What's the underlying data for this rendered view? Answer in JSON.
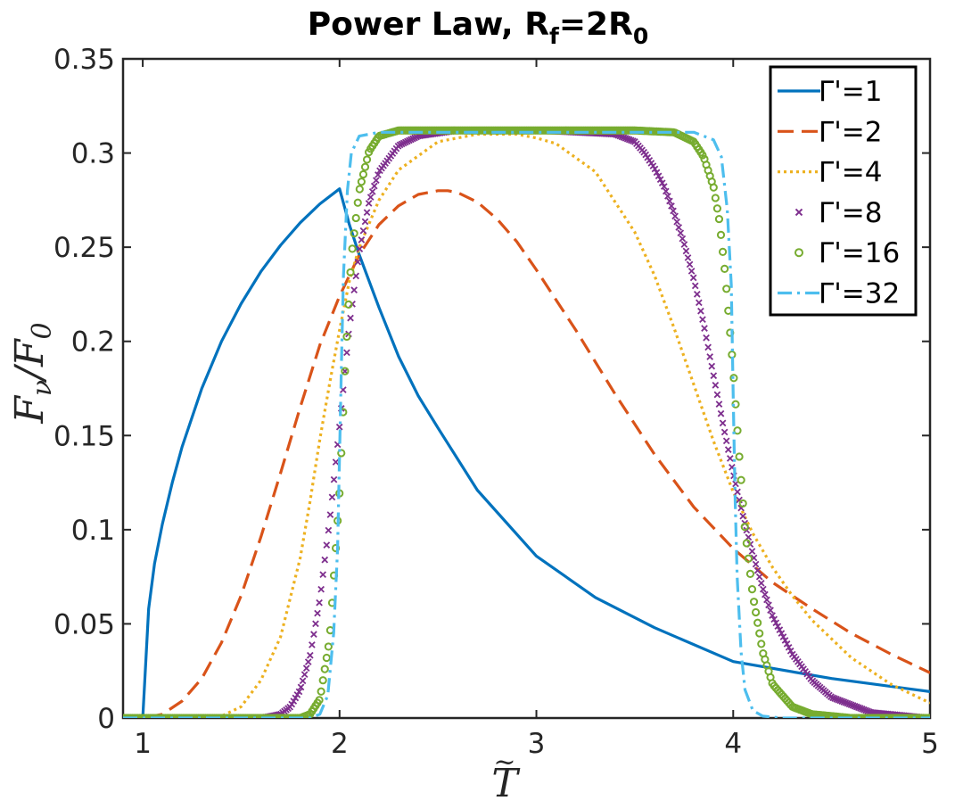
{
  "chart_data": {
    "type": "line",
    "title": "Power Law, R",
    "title_sub1": "f",
    "title_mid": "=2R",
    "title_sub2": "0",
    "xlabel": "T",
    "xlabel_accent": "~",
    "ylabel_main": "F",
    "ylabel_sub1": "ν",
    "ylabel_slash": "/F",
    "ylabel_sub2": "0",
    "xlim": [
      0.9,
      5
    ],
    "ylim": [
      0,
      0.35
    ],
    "x_ticks": [
      1,
      2,
      3,
      4,
      5
    ],
    "x_tick_labels": [
      "1",
      "2",
      "3",
      "4",
      "5"
    ],
    "y_ticks": [
      0,
      0.05,
      0.1,
      0.15,
      0.2,
      0.25,
      0.3,
      0.35
    ],
    "y_tick_labels": [
      "0",
      "0.05",
      "0.1",
      "0.15",
      "0.2",
      "0.25",
      "0.3",
      "0.35"
    ],
    "grid": false,
    "legend_position": "top-right",
    "series": [
      {
        "name": "Γ'=1",
        "color": "#0072BD",
        "style": "solid",
        "x": [
          0.9,
          1.0,
          1.03,
          1.06,
          1.1,
          1.15,
          1.2,
          1.3,
          1.4,
          1.5,
          1.6,
          1.7,
          1.8,
          1.9,
          2.0,
          2.05,
          2.1,
          2.2,
          2.3,
          2.4,
          2.5,
          2.7,
          3.0,
          3.3,
          3.6,
          4.0,
          4.5,
          5.0
        ],
        "y": [
          0,
          0,
          0.058,
          0.082,
          0.103,
          0.125,
          0.144,
          0.175,
          0.2,
          0.22,
          0.237,
          0.251,
          0.263,
          0.273,
          0.281,
          0.262,
          0.246,
          0.218,
          0.192,
          0.171,
          0.154,
          0.121,
          0.086,
          0.064,
          0.048,
          0.03,
          0.021,
          0.014
        ]
      },
      {
        "name": "Γ'=2",
        "color": "#D95319",
        "style": "dashed",
        "x": [
          0.9,
          1.0,
          1.1,
          1.2,
          1.3,
          1.4,
          1.5,
          1.6,
          1.7,
          1.8,
          1.9,
          2.0,
          2.1,
          2.2,
          2.3,
          2.4,
          2.5,
          2.55,
          2.6,
          2.7,
          2.8,
          2.9,
          3.0,
          3.2,
          3.4,
          3.6,
          3.8,
          4.0,
          4.2,
          4.4,
          4.6,
          4.8,
          5.0
        ],
        "y": [
          0,
          0,
          0.002,
          0.009,
          0.021,
          0.04,
          0.065,
          0.096,
          0.13,
          0.165,
          0.198,
          0.224,
          0.246,
          0.262,
          0.272,
          0.278,
          0.28,
          0.28,
          0.279,
          0.274,
          0.265,
          0.253,
          0.238,
          0.206,
          0.172,
          0.14,
          0.112,
          0.09,
          0.072,
          0.058,
          0.045,
          0.034,
          0.024
        ]
      },
      {
        "name": "Γ'=4",
        "color": "#EDB120",
        "style": "dotted",
        "x": [
          0.9,
          1.3,
          1.4,
          1.5,
          1.6,
          1.7,
          1.8,
          1.85,
          1.9,
          1.95,
          2.0,
          2.05,
          2.1,
          2.2,
          2.3,
          2.5,
          2.7,
          2.9,
          3.0,
          3.1,
          3.3,
          3.5,
          3.6,
          3.7,
          3.8,
          3.9,
          4.0,
          4.1,
          4.2,
          4.3,
          4.4,
          4.6,
          4.8,
          5.0
        ],
        "y": [
          0,
          0,
          0.001,
          0.006,
          0.02,
          0.043,
          0.085,
          0.115,
          0.148,
          0.178,
          0.206,
          0.232,
          0.25,
          0.275,
          0.291,
          0.306,
          0.31,
          0.31,
          0.308,
          0.305,
          0.29,
          0.258,
          0.235,
          0.207,
          0.177,
          0.147,
          0.12,
          0.098,
          0.08,
          0.065,
          0.052,
          0.032,
          0.018,
          0.008
        ]
      },
      {
        "name": "Γ'=8",
        "color": "#7E2F8E",
        "style": "cross",
        "x": [
          0.9,
          1.6,
          1.7,
          1.75,
          1.8,
          1.85,
          1.9,
          1.95,
          2.0,
          2.05,
          2.1,
          2.15,
          2.2,
          2.3,
          2.4,
          2.6,
          3.0,
          3.4,
          3.5,
          3.55,
          3.6,
          3.65,
          3.7,
          3.75,
          3.8,
          3.85,
          3.9,
          3.95,
          4.0,
          4.05,
          4.1,
          4.15,
          4.2,
          4.3,
          4.4,
          4.5,
          4.7,
          5.0
        ],
        "y": [
          0,
          0,
          0.002,
          0.006,
          0.015,
          0.033,
          0.063,
          0.105,
          0.155,
          0.208,
          0.248,
          0.274,
          0.29,
          0.304,
          0.309,
          0.312,
          0.312,
          0.31,
          0.306,
          0.3,
          0.292,
          0.282,
          0.268,
          0.252,
          0.233,
          0.209,
          0.182,
          0.155,
          0.13,
          0.107,
          0.087,
          0.069,
          0.054,
          0.034,
          0.02,
          0.011,
          0.003,
          0
        ]
      },
      {
        "name": "Γ'=16",
        "color": "#77AC30",
        "style": "circle",
        "x": [
          0.9,
          1.8,
          1.85,
          1.9,
          1.95,
          2.0,
          2.03,
          2.06,
          2.1,
          2.15,
          2.2,
          2.3,
          2.5,
          3.0,
          3.5,
          3.7,
          3.8,
          3.85,
          3.9,
          3.93,
          3.96,
          4.0,
          4.03,
          4.06,
          4.1,
          4.15,
          4.2,
          4.3,
          4.4,
          4.6,
          5.0
        ],
        "y": [
          0,
          0,
          0.002,
          0.01,
          0.042,
          0.12,
          0.19,
          0.245,
          0.28,
          0.301,
          0.309,
          0.312,
          0.312,
          0.312,
          0.312,
          0.311,
          0.306,
          0.298,
          0.282,
          0.264,
          0.235,
          0.185,
          0.14,
          0.1,
          0.065,
          0.035,
          0.018,
          0.006,
          0.002,
          0,
          0
        ]
      },
      {
        "name": "Γ'=32",
        "color": "#4DBEEE",
        "style": "dashdot",
        "x": [
          0.9,
          1.85,
          1.9,
          1.94,
          1.97,
          1.99,
          2.0,
          2.01,
          2.02,
          2.04,
          2.06,
          2.1,
          2.2,
          3.0,
          3.8,
          3.9,
          3.94,
          3.97,
          3.99,
          4.0,
          4.01,
          4.02,
          4.04,
          4.06,
          4.1,
          4.15,
          4.25,
          5.0
        ],
        "y": [
          0,
          0,
          0.002,
          0.012,
          0.045,
          0.09,
          0.14,
          0.19,
          0.235,
          0.28,
          0.3,
          0.309,
          0.311,
          0.311,
          0.311,
          0.307,
          0.298,
          0.27,
          0.23,
          0.17,
          0.115,
          0.075,
          0.035,
          0.015,
          0.004,
          0.001,
          0,
          0
        ]
      }
    ]
  }
}
